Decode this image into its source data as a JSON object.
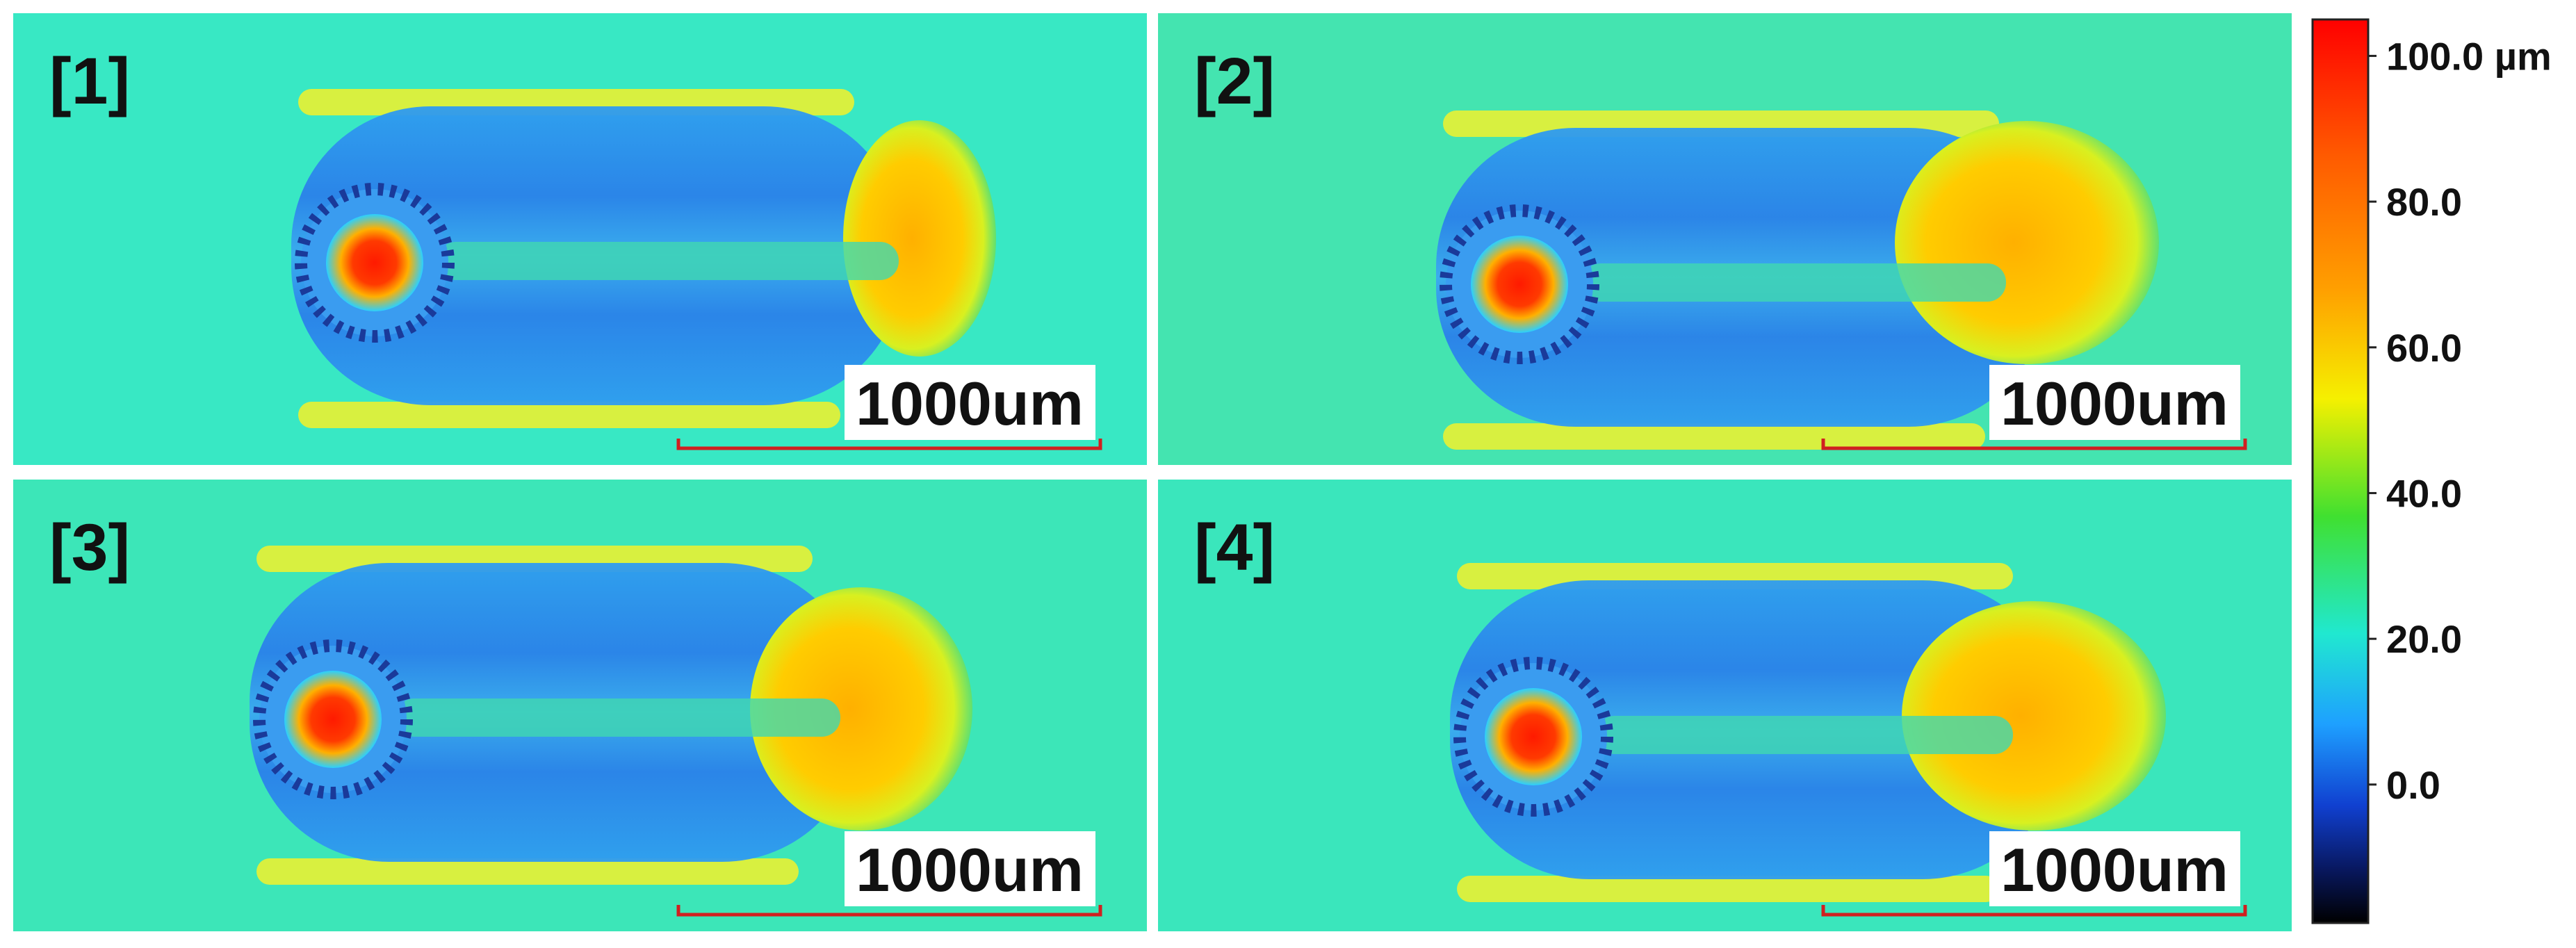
{
  "panels": [
    {
      "label": "[1]",
      "scale_bar": "1000um"
    },
    {
      "label": "[2]",
      "scale_bar": "1000um"
    },
    {
      "label": "[3]",
      "scale_bar": "1000um"
    },
    {
      "label": "[4]",
      "scale_bar": "1000um"
    }
  ],
  "colorbar": {
    "ylim": [
      -19,
      105
    ],
    "yticks": [
      {
        "value": 100,
        "label": "100.0 µm"
      },
      {
        "value": 80,
        "label": "80.0"
      },
      {
        "value": 60,
        "label": "60.0"
      },
      {
        "value": 40,
        "label": "40.0"
      },
      {
        "value": 20,
        "label": "20.0"
      },
      {
        "value": 0,
        "label": "0.0"
      }
    ]
  }
}
